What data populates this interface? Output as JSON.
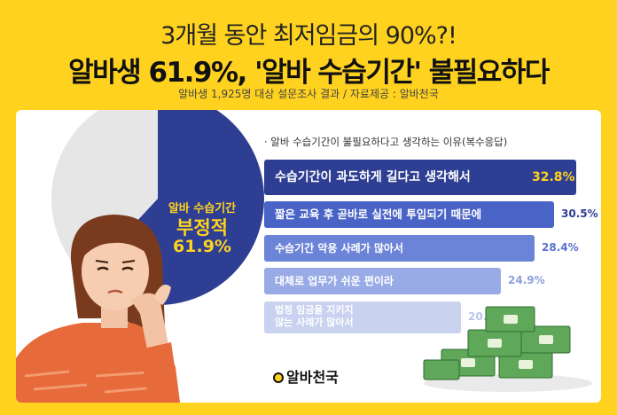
{
  "header": {
    "line1": "3개월 동안 최저임금의 90%?!",
    "line2": "알바생 61.9%, '알바 수습기간' 불필요하다",
    "source": "알바생 1,925명 대상 설문조사 결과 / 자료제공 : 알바천국"
  },
  "pie": {
    "label1": "알바 수습기간",
    "label2": "부정적",
    "label3": "61.9%",
    "value": 61.9,
    "colors": {
      "main": "#2E3E92",
      "rest": "#E6E6E6",
      "text": "#FFD21F"
    }
  },
  "chart_data": {
    "type": "bar",
    "title": "· 알바 수습기간이 불필요하다고 생각하는 이유(복수응답)",
    "categories": [
      "수습기간이 과도하게 길다고 생각해서",
      "짧은 교육 후 곧바로 실전에 투입되기 때문에",
      "수습기간 악용 사례가 많아서",
      "대체로 업무가 쉬운 편이라",
      "법정 임금을 지키지 않는 사례가 많아서"
    ],
    "values": [
      32.8,
      30.5,
      28.4,
      24.9,
      20.7
    ],
    "labels": [
      "32.8%",
      "30.5%",
      "28.4%",
      "24.9%",
      "20.7%"
    ],
    "category_lines": [
      [
        "수습기간이 과도하게 길다고 생각해서"
      ],
      [
        "짧은 교육 후 곧바로 실전에 투입되기 때문에"
      ],
      [
        "수습기간 악용 사례가 많아서"
      ],
      [
        "대체로 업무가 쉬운 편이라"
      ],
      [
        "법정 임금을 지키지",
        "않는 사례가 많아서"
      ]
    ],
    "colors": [
      "#2E3E92",
      "#4A63C6",
      "#6B84D8",
      "#98ABE6",
      "#C9D2EF"
    ],
    "label_colors": [
      "#FFD21F",
      "#2E3E92",
      "#5A73CC",
      "#8CA0E0",
      "#B9C4EC"
    ]
  },
  "logo": {
    "text": "알바천국"
  }
}
